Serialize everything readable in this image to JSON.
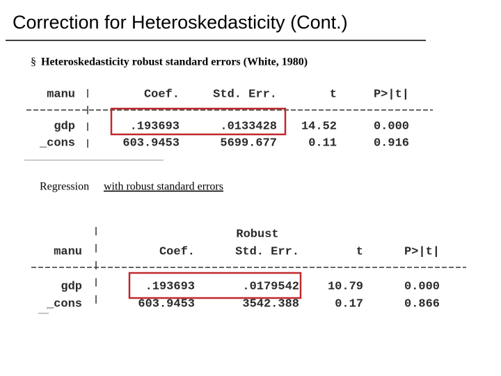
{
  "title": "Correction for Heteroskedasticity (Cont.)",
  "bullet": {
    "marker": "§",
    "text": "Heteroskedasticity robust standard errors (White, 1980)"
  },
  "table1": {
    "header": [
      "manu",
      "Coef.",
      "Std. Err.",
      "t",
      "P>|t|"
    ],
    "rows": [
      [
        "gdp",
        ".193693",
        ".0133428",
        "14.52",
        "0.000"
      ],
      [
        "_cons",
        "603.9453",
        "5699.677",
        "0.11",
        "0.916"
      ]
    ]
  },
  "caption": {
    "lead": "Regression",
    "underlined": "with robust standard errors"
  },
  "table2": {
    "header_top": "Robust",
    "header": [
      "manu",
      "Coef.",
      "Std. Err.",
      "t",
      "P>|t|"
    ],
    "rows": [
      [
        "gdp",
        ".193693",
        ".0179542",
        "10.79",
        "0.000"
      ],
      [
        "_cons",
        "603.9453",
        "3542.388",
        "0.17",
        "0.866"
      ]
    ]
  }
}
